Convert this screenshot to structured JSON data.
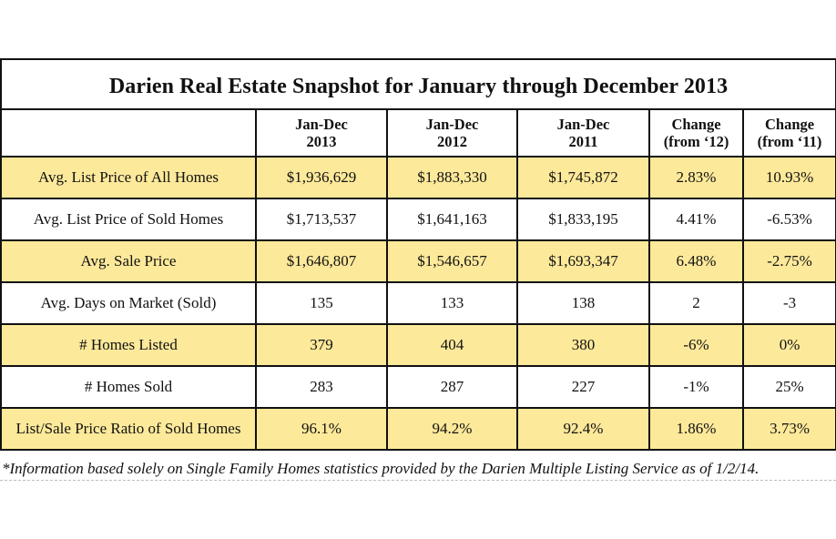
{
  "title": "Darien Real Estate Snapshot for January through December 2013",
  "columns": [
    {
      "line1": "",
      "line2": ""
    },
    {
      "line1": "Jan-Dec",
      "line2": "2013"
    },
    {
      "line1": "Jan-Dec",
      "line2": "2012"
    },
    {
      "line1": "Jan-Dec",
      "line2": "2011"
    },
    {
      "line1": "Change",
      "line2": "(from ‘12)"
    },
    {
      "line1": "Change",
      "line2": "(from ‘11)"
    }
  ],
  "rows": [
    {
      "label": "Avg. List Price of All Homes",
      "v2013": "$1,936,629",
      "v2012": "$1,883,330",
      "v2011": "$1,745,872",
      "chg12": "2.83%",
      "chg11": "10.93%"
    },
    {
      "label": "Avg. List Price of Sold Homes",
      "v2013": "$1,713,537",
      "v2012": "$1,641,163",
      "v2011": "$1,833,195",
      "chg12": "4.41%",
      "chg11": "-6.53%"
    },
    {
      "label": "Avg. Sale Price",
      "v2013": "$1,646,807",
      "v2012": "$1,546,657",
      "v2011": "$1,693,347",
      "chg12": "6.48%",
      "chg11": "-2.75%"
    },
    {
      "label": "Avg. Days on Market (Sold)",
      "v2013": "135",
      "v2012": "133",
      "v2011": "138",
      "chg12": "2",
      "chg11": "-3"
    },
    {
      "label": "# Homes Listed",
      "v2013": "379",
      "v2012": "404",
      "v2011": "380",
      "chg12": "-6%",
      "chg11": "0%"
    },
    {
      "label": "# Homes Sold",
      "v2013": "283",
      "v2012": "287",
      "v2011": "227",
      "chg12": "-1%",
      "chg11": "25%"
    },
    {
      "label": "List/Sale Price Ratio of Sold Homes",
      "v2013": "96.1%",
      "v2012": "94.2%",
      "v2011": "92.4%",
      "chg12": "1.86%",
      "chg11": "3.73%"
    }
  ],
  "footnote": "*Information based solely on Single Family Homes statistics provided by the Darien Multiple Listing Service as of 1/2/14.",
  "colors": {
    "shaded_row": "#fde99a",
    "plain_row": "#ffffff",
    "border": "#111111"
  }
}
